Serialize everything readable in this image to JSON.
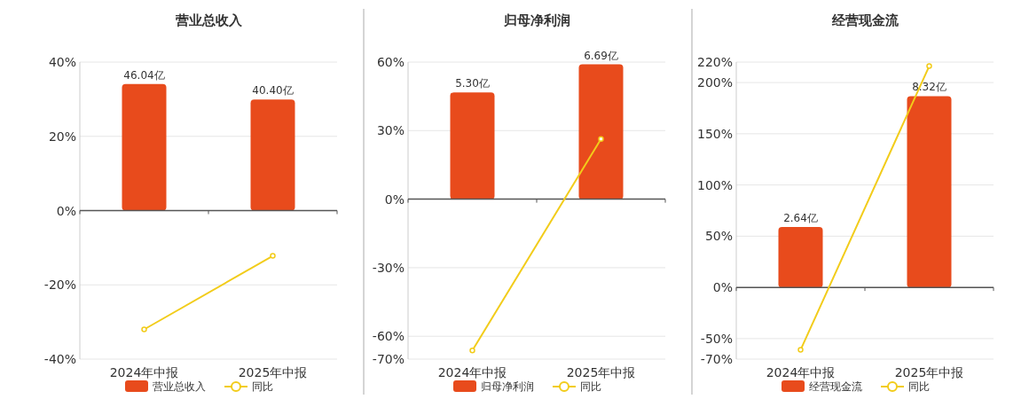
{
  "chart_data": [
    {
      "type": "bar",
      "title": "营业总收入",
      "categories": [
        "2024年中报",
        "2025年中报"
      ],
      "ylim": [
        -40,
        40
      ],
      "yticks": [
        {
          "value": -40,
          "label": "-40%"
        },
        {
          "value": -20,
          "label": "-20%"
        },
        {
          "value": 0,
          "label": "0%"
        },
        {
          "value": 20,
          "label": "20%"
        },
        {
          "value": 40,
          "label": "40%"
        }
      ],
      "grid": "y",
      "legend": "bottom",
      "marker": "circle",
      "tick_labels": "y",
      "y2lim": [
        -54,
        54
      ],
      "series": [
        {
          "name": "营业总收入",
          "axis": "y2",
          "color": "#e84b1c",
          "values": [
            46.04,
            40.4
          ],
          "value_labels": [
            "46.04亿",
            "40.40亿"
          ]
        },
        {
          "name": "同比",
          "type": "line",
          "color": "#f2cc1a",
          "values": [
            -32.0,
            -12.2
          ]
        }
      ]
    },
    {
      "type": "bar",
      "title": "归母净利润",
      "categories": [
        "2024年中报",
        "2025年中报"
      ],
      "ylim": [
        -70,
        60
      ],
      "yticks": [
        {
          "value": -70,
          "label": "-70%"
        },
        {
          "value": -60,
          "label": "-60%"
        },
        {
          "value": -30,
          "label": "-30%"
        },
        {
          "value": 0,
          "label": "0%"
        },
        {
          "value": 30,
          "label": "30%"
        },
        {
          "value": 60,
          "label": "60%"
        }
      ],
      "grid": "y",
      "legend": "bottom",
      "marker": "circle",
      "tick_labels": "y",
      "y2lim": [
        -7.9,
        6.8
      ],
      "series": [
        {
          "name": "归母净利润",
          "axis": "y2",
          "color": "#e84b1c",
          "values": [
            5.3,
            6.69
          ],
          "value_labels": [
            "5.30亿",
            "6.69亿"
          ]
        },
        {
          "name": "同比",
          "type": "line",
          "color": "#f2cc1a",
          "values": [
            -66.2,
            26.3
          ]
        }
      ]
    },
    {
      "type": "bar",
      "title": "经营现金流",
      "categories": [
        "2024年中报",
        "2025年中报"
      ],
      "ylim": [
        -70,
        220
      ],
      "yticks": [
        {
          "value": -70,
          "label": "-70%"
        },
        {
          "value": -50,
          "label": "-50%"
        },
        {
          "value": 0,
          "label": "0%"
        },
        {
          "value": 50,
          "label": "50%"
        },
        {
          "value": 100,
          "label": "100%"
        },
        {
          "value": 150,
          "label": "150%"
        },
        {
          "value": 200,
          "label": "200%"
        },
        {
          "value": 220,
          "label": "220%"
        }
      ],
      "grid": "y",
      "legend": "bottom",
      "marker": "circle",
      "tick_labels": "y",
      "y2lim": [
        -3.1,
        9.8
      ],
      "series": [
        {
          "name": "经营现金流",
          "axis": "y2",
          "color": "#e84b1c",
          "values": [
            2.64,
            8.32
          ],
          "value_labels": [
            "2.64亿",
            "8.32亿"
          ]
        },
        {
          "name": "同比",
          "type": "line",
          "color": "#f2cc1a",
          "values": [
            -61,
            216
          ]
        }
      ]
    }
  ]
}
